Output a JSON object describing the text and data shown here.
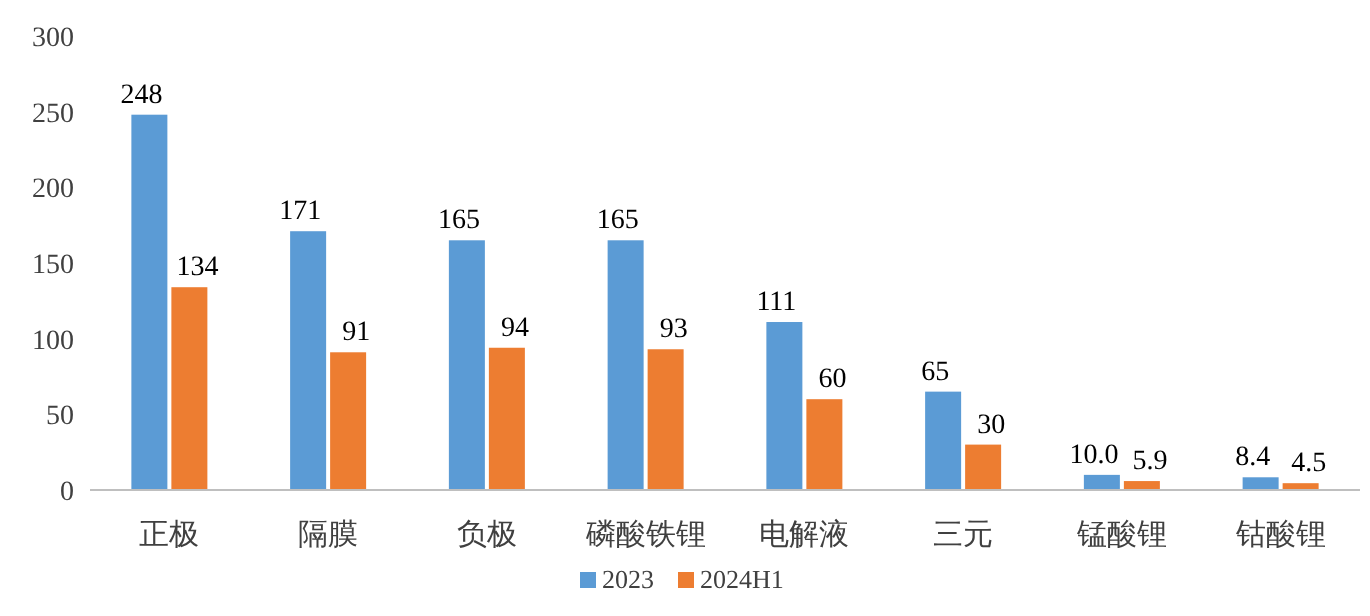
{
  "chart_data": {
    "type": "bar",
    "categories": [
      "正极",
      "隔膜",
      "负极",
      "磷酸铁锂",
      "电解液",
      "三元",
      "锰酸锂",
      "钴酸锂"
    ],
    "series": [
      {
        "name": "2023",
        "color": "#5b9bd5",
        "values": [
          248,
          171,
          165,
          165,
          111,
          65,
          10.0,
          8.4
        ],
        "value_labels": [
          "248",
          "171",
          "165",
          "165",
          "111",
          "65",
          "10.0",
          "8.4"
        ]
      },
      {
        "name": "2024H1",
        "color": "#ed7d31",
        "values": [
          134,
          91,
          94,
          93,
          60,
          30,
          5.9,
          4.5
        ],
        "value_labels": [
          "134",
          "91",
          "94",
          "93",
          "60",
          "30",
          "5.9",
          "4.5"
        ]
      }
    ],
    "ylim": [
      0,
      300
    ],
    "yticks": [
      0,
      50,
      100,
      150,
      200,
      250,
      300
    ],
    "grid": false,
    "legend": "bottom"
  }
}
